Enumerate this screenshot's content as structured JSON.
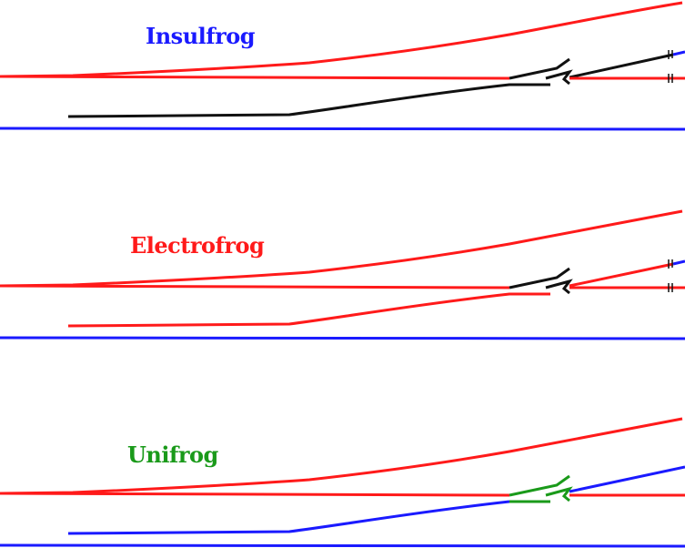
{
  "colors": {
    "red": "#ff1a1a",
    "blue": "#1a1aff",
    "black": "#111111",
    "green": "#1a9a1a",
    "background": "#ffffff"
  },
  "panels": [
    {
      "id": "insulfrog",
      "title": "Insulfrog",
      "title_color": "#1a1aff",
      "stock_rail_straight_color": "#ff1a1a",
      "stock_rail_bottom_color": "#1a1aff",
      "diverging_closure_color": "#ff1a1a",
      "straight_closure_color": "#111111",
      "frog_color": "#111111",
      "exit_straight_color": "#ff1a1a",
      "exit_diverging_color": "#1a1aff",
      "insulated_joints": true
    },
    {
      "id": "electrofrog",
      "title": "Electrofrog",
      "title_color": "#ff1a1a",
      "stock_rail_straight_color": "#ff1a1a",
      "stock_rail_bottom_color": "#1a1aff",
      "diverging_closure_color": "#ff1a1a",
      "straight_closure_color": "#ff1a1a",
      "frog_color": "#111111",
      "exit_straight_color": "#ff1a1a",
      "exit_diverging_color": "#ff1a1a",
      "exit_diverging_tail_color": "#1a1aff",
      "insulated_joints": true
    },
    {
      "id": "unifrog",
      "title": "Unifrog",
      "title_color": "#1a9a1a",
      "stock_rail_straight_color": "#ff1a1a",
      "stock_rail_bottom_color": "#1a1aff",
      "diverging_closure_color": "#ff1a1a",
      "straight_closure_color": "#1a1aff",
      "frog_color": "#1a9a1a",
      "exit_straight_color": "#ff1a1a",
      "exit_diverging_color": "#1a1aff",
      "insulated_joints": false
    }
  ]
}
